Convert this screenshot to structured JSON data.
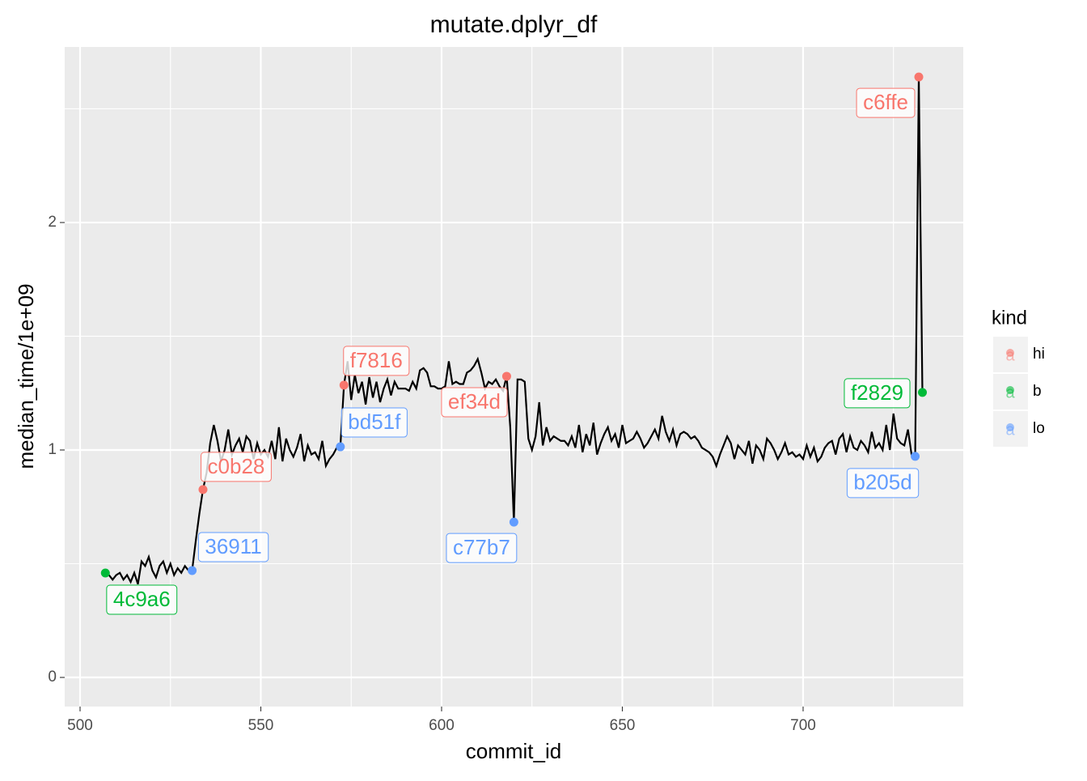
{
  "chart_data": {
    "type": "line",
    "title": "mutate.dplyr_df",
    "x_label": "commit_id",
    "y_label": "median_time/1e+09",
    "xlim": [
      495.75,
      744.3
    ],
    "ylim": [
      -0.128,
      2.772
    ],
    "xticks": [
      500,
      550,
      600,
      650,
      700
    ],
    "yticks": [
      0,
      1,
      2
    ],
    "grid": true,
    "line": {
      "color": "#000000",
      "x": [
        507,
        508,
        509,
        510,
        511,
        512,
        513,
        514,
        515,
        516,
        517,
        518,
        519,
        520,
        521,
        522,
        523,
        524,
        525,
        526,
        527,
        528,
        529,
        530,
        531,
        532,
        533,
        534,
        535,
        536,
        537,
        538,
        539,
        540,
        541,
        542,
        543,
        544,
        545,
        546,
        547,
        548,
        549,
        550,
        551,
        552,
        553,
        554,
        555,
        556,
        557,
        558,
        559,
        560,
        561,
        562,
        563,
        564,
        565,
        566,
        567,
        568,
        569,
        570,
        571,
        572,
        573,
        574,
        575,
        576,
        577,
        578,
        579,
        580,
        581,
        582,
        583,
        584,
        585,
        586,
        587,
        588,
        589,
        590,
        591,
        592,
        593,
        594,
        595,
        596,
        597,
        598,
        599,
        600,
        601,
        602,
        603,
        604,
        605,
        606,
        607,
        608,
        609,
        610,
        611,
        612,
        613,
        614,
        615,
        616,
        617,
        618,
        619,
        620,
        621,
        622,
        623,
        624,
        625,
        626,
        627,
        628,
        629,
        630,
        631,
        632,
        633,
        634,
        635,
        636,
        637,
        638,
        639,
        640,
        641,
        642,
        643,
        644,
        645,
        646,
        647,
        648,
        649,
        650,
        651,
        652,
        653,
        654,
        655,
        656,
        657,
        658,
        659,
        660,
        661,
        662,
        663,
        664,
        665,
        666,
        667,
        668,
        669,
        670,
        671,
        672,
        673,
        674,
        675,
        676,
        677,
        678,
        679,
        680,
        681,
        682,
        683,
        684,
        685,
        686,
        687,
        688,
        689,
        690,
        691,
        692,
        693,
        694,
        695,
        696,
        697,
        698,
        699,
        700,
        701,
        702,
        703,
        704,
        705,
        706,
        707,
        708,
        709,
        710,
        711,
        712,
        713,
        714,
        715,
        716,
        717,
        718,
        719,
        720,
        721,
        722,
        723,
        724,
        725,
        726,
        727,
        728,
        729,
        730,
        731,
        732,
        733
      ],
      "values": [
        0.46,
        0.45,
        0.43,
        0.45,
        0.46,
        0.43,
        0.45,
        0.42,
        0.46,
        0.41,
        0.51,
        0.49,
        0.53,
        0.47,
        0.44,
        0.49,
        0.51,
        0.46,
        0.5,
        0.45,
        0.48,
        0.46,
        0.49,
        0.47,
        0.47,
        0.6,
        0.72,
        0.826,
        0.9,
        1.03,
        1.11,
        1.04,
        0.95,
        1.0,
        1.09,
        0.98,
        1.02,
        1.05,
        0.99,
        1.06,
        1.04,
        0.96,
        1.03,
        0.98,
        1.0,
        0.97,
        1.04,
        0.96,
        1.1,
        0.95,
        1.05,
        1.0,
        0.97,
        1.01,
        1.07,
        0.95,
        1.02,
        0.98,
        0.99,
        0.96,
        1.04,
        0.93,
        0.96,
        0.98,
        1.01,
        1.014,
        1.285,
        1.39,
        1.22,
        1.33,
        1.25,
        1.3,
        1.2,
        1.32,
        1.23,
        1.3,
        1.21,
        1.27,
        1.31,
        1.24,
        1.3,
        1.27,
        1.27,
        1.27,
        1.26,
        1.3,
        1.27,
        1.35,
        1.36,
        1.34,
        1.28,
        1.28,
        1.27,
        1.27,
        1.28,
        1.39,
        1.29,
        1.3,
        1.29,
        1.29,
        1.34,
        1.35,
        1.37,
        1.4,
        1.34,
        1.27,
        1.3,
        1.29,
        1.31,
        1.28,
        1.26,
        1.324,
        1.1,
        0.683,
        1.31,
        1.31,
        1.3,
        1.05,
        1.0,
        1.06,
        1.21,
        1.02,
        1.1,
        1.04,
        1.06,
        1.05,
        1.04,
        1.04,
        1.02,
        1.06,
        1.01,
        1.11,
        0.99,
        1.07,
        1.02,
        1.12,
        0.98,
        1.03,
        1.07,
        1.1,
        1.04,
        1.07,
        1.01,
        1.11,
        1.03,
        1.04,
        1.05,
        1.08,
        1.05,
        1.01,
        1.03,
        1.06,
        1.09,
        1.05,
        1.15,
        1.08,
        1.04,
        1.09,
        1.02,
        1.07,
        1.08,
        1.07,
        1.05,
        1.06,
        1.04,
        1.01,
        1.0,
        0.99,
        0.97,
        0.93,
        0.98,
        1.02,
        1.06,
        1.03,
        0.96,
        1.02,
        1.0,
        0.98,
        1.04,
        0.94,
        1.02,
        1.0,
        0.96,
        1.05,
        1.03,
        1.0,
        0.96,
        0.99,
        1.03,
        0.98,
        0.99,
        0.97,
        0.98,
        0.96,
        1.02,
        0.97,
        1.01,
        0.95,
        0.97,
        1.01,
        1.03,
        1.04,
        0.98,
        1.05,
        1.07,
        0.99,
        1.06,
        1.01,
        1.0,
        1.04,
        1.02,
        0.99,
        1.08,
        1.01,
        1.03,
        1.0,
        1.11,
        1.0,
        1.16,
        1.05,
        1.03,
        1.02,
        1.09,
        0.98,
        0.972,
        2.64,
        1.253
      ]
    },
    "points": {
      "x": [
        507,
        531,
        534,
        572,
        573,
        618,
        620,
        731,
        732,
        733
      ],
      "y": [
        0.459,
        0.47,
        0.826,
        1.014,
        1.285,
        1.324,
        0.683,
        0.972,
        2.64,
        1.253
      ],
      "kind": [
        "b",
        "lo",
        "hi",
        "lo",
        "hi",
        "hi",
        "lo",
        "lo",
        "hi",
        "b"
      ],
      "labels": [
        "4c9a6",
        "36911",
        "c0b28",
        "bd51f",
        "f7816",
        "ef34d",
        "c77b7",
        "b205d",
        "c6ffe",
        "f2829"
      ]
    },
    "legend": {
      "title": "kind",
      "entries": [
        "hi",
        "b",
        "lo"
      ],
      "colors": [
        "#F8766D",
        "#00BA38",
        "#619CFF"
      ]
    }
  }
}
